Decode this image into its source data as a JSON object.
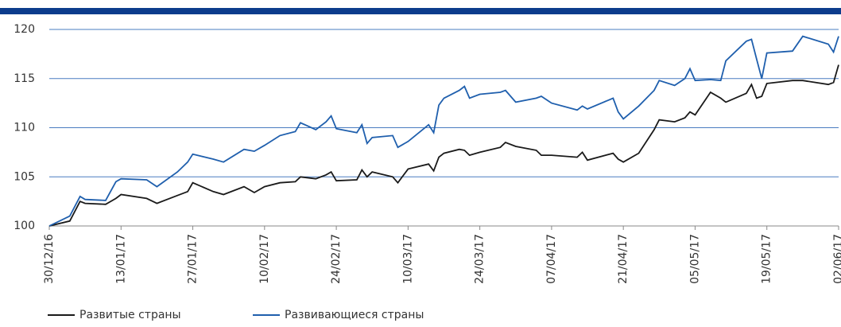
{
  "chart_data": {
    "type": "line",
    "x": [
      "30/12/16",
      "03/01/17",
      "05/01/17",
      "06/01/17",
      "10/01/17",
      "12/01/17",
      "13/01/17",
      "18/01/17",
      "20/01/17",
      "24/01/17",
      "26/01/17",
      "27/01/17",
      "31/01/17",
      "02/02/17",
      "06/02/17",
      "08/02/17",
      "10/02/17",
      "13/02/17",
      "16/02/17",
      "17/02/17",
      "20/02/17",
      "22/02/17",
      "23/02/17",
      "24/02/17",
      "28/02/17",
      "01/03/17",
      "02/03/17",
      "03/03/17",
      "07/03/17",
      "08/03/17",
      "10/03/17",
      "14/03/17",
      "15/03/17",
      "16/03/17",
      "17/03/17",
      "20/03/17",
      "21/03/17",
      "22/03/17",
      "24/03/17",
      "28/03/17",
      "29/03/17",
      "31/03/17",
      "04/04/17",
      "05/04/17",
      "07/04/17",
      "12/04/17",
      "13/04/17",
      "14/04/17",
      "19/04/17",
      "20/04/17",
      "21/04/17",
      "24/04/17",
      "27/04/17",
      "28/04/17",
      "01/05/17",
      "03/05/17",
      "04/05/17",
      "05/05/17",
      "08/05/17",
      "10/05/17",
      "11/05/17",
      "15/05/17",
      "16/05/17",
      "17/05/17",
      "18/05/17",
      "19/05/17",
      "24/05/17",
      "26/05/17",
      "31/05/17",
      "01/06/17",
      "02/06/17"
    ],
    "series": [
      {
        "name": "Развитые страны",
        "color": "#1a1a1a",
        "values": [
          100,
          100.5,
          102.5,
          102.3,
          102.2,
          102.8,
          103.2,
          102.8,
          102.3,
          103.1,
          103.5,
          104.4,
          103.5,
          103.2,
          104.0,
          103.4,
          104.0,
          104.4,
          104.5,
          105.0,
          104.8,
          105.2,
          105.5,
          104.6,
          104.7,
          105.7,
          105.0,
          105.5,
          105.0,
          104.4,
          105.8,
          106.3,
          105.6,
          107.0,
          107.4,
          107.8,
          107.7,
          107.2,
          107.5,
          108.0,
          108.5,
          108.1,
          107.7,
          107.2,
          107.2,
          107.0,
          107.5,
          106.7,
          107.4,
          106.8,
          106.5,
          107.4,
          109.8,
          110.8,
          110.6,
          111.0,
          111.6,
          111.3,
          113.6,
          113.0,
          112.6,
          113.5,
          114.4,
          113.0,
          113.2,
          114.5,
          114.8,
          114.8,
          114.4,
          114.6,
          116.4
        ]
      },
      {
        "name": "Развивающиеся страны",
        "color": "#1f5fad",
        "values": [
          100,
          101.0,
          103.0,
          102.7,
          102.6,
          104.5,
          104.8,
          104.7,
          104.0,
          105.5,
          106.5,
          107.3,
          106.8,
          106.5,
          107.8,
          107.6,
          108.2,
          109.2,
          109.6,
          110.5,
          109.8,
          110.6,
          111.2,
          109.9,
          109.5,
          110.3,
          108.4,
          109.0,
          109.2,
          108.0,
          108.6,
          110.3,
          109.5,
          112.3,
          113.0,
          113.8,
          114.2,
          113.0,
          113.4,
          113.6,
          113.8,
          112.6,
          113.0,
          113.2,
          112.5,
          111.8,
          112.2,
          111.9,
          113.0,
          111.6,
          110.9,
          112.2,
          113.8,
          114.8,
          114.3,
          115.0,
          116.0,
          114.8,
          114.9,
          114.8,
          116.8,
          118.8,
          119.0,
          117.0,
          115.0,
          117.6,
          117.8,
          119.3,
          118.5,
          117.7,
          119.3
        ]
      }
    ],
    "xlim": [
      "30/12/16",
      "02/06/17"
    ],
    "xticks": [
      "30/12/16",
      "13/01/17",
      "27/01/17",
      "10/02/17",
      "24/02/17",
      "10/03/17",
      "24/03/17",
      "07/04/17",
      "21/04/17",
      "05/05/17",
      "19/05/17",
      "02/06/17"
    ],
    "ylim": [
      100,
      120
    ],
    "yticks": [
      100,
      105,
      110,
      115,
      120
    ],
    "grid": true,
    "legend": "bottom"
  }
}
